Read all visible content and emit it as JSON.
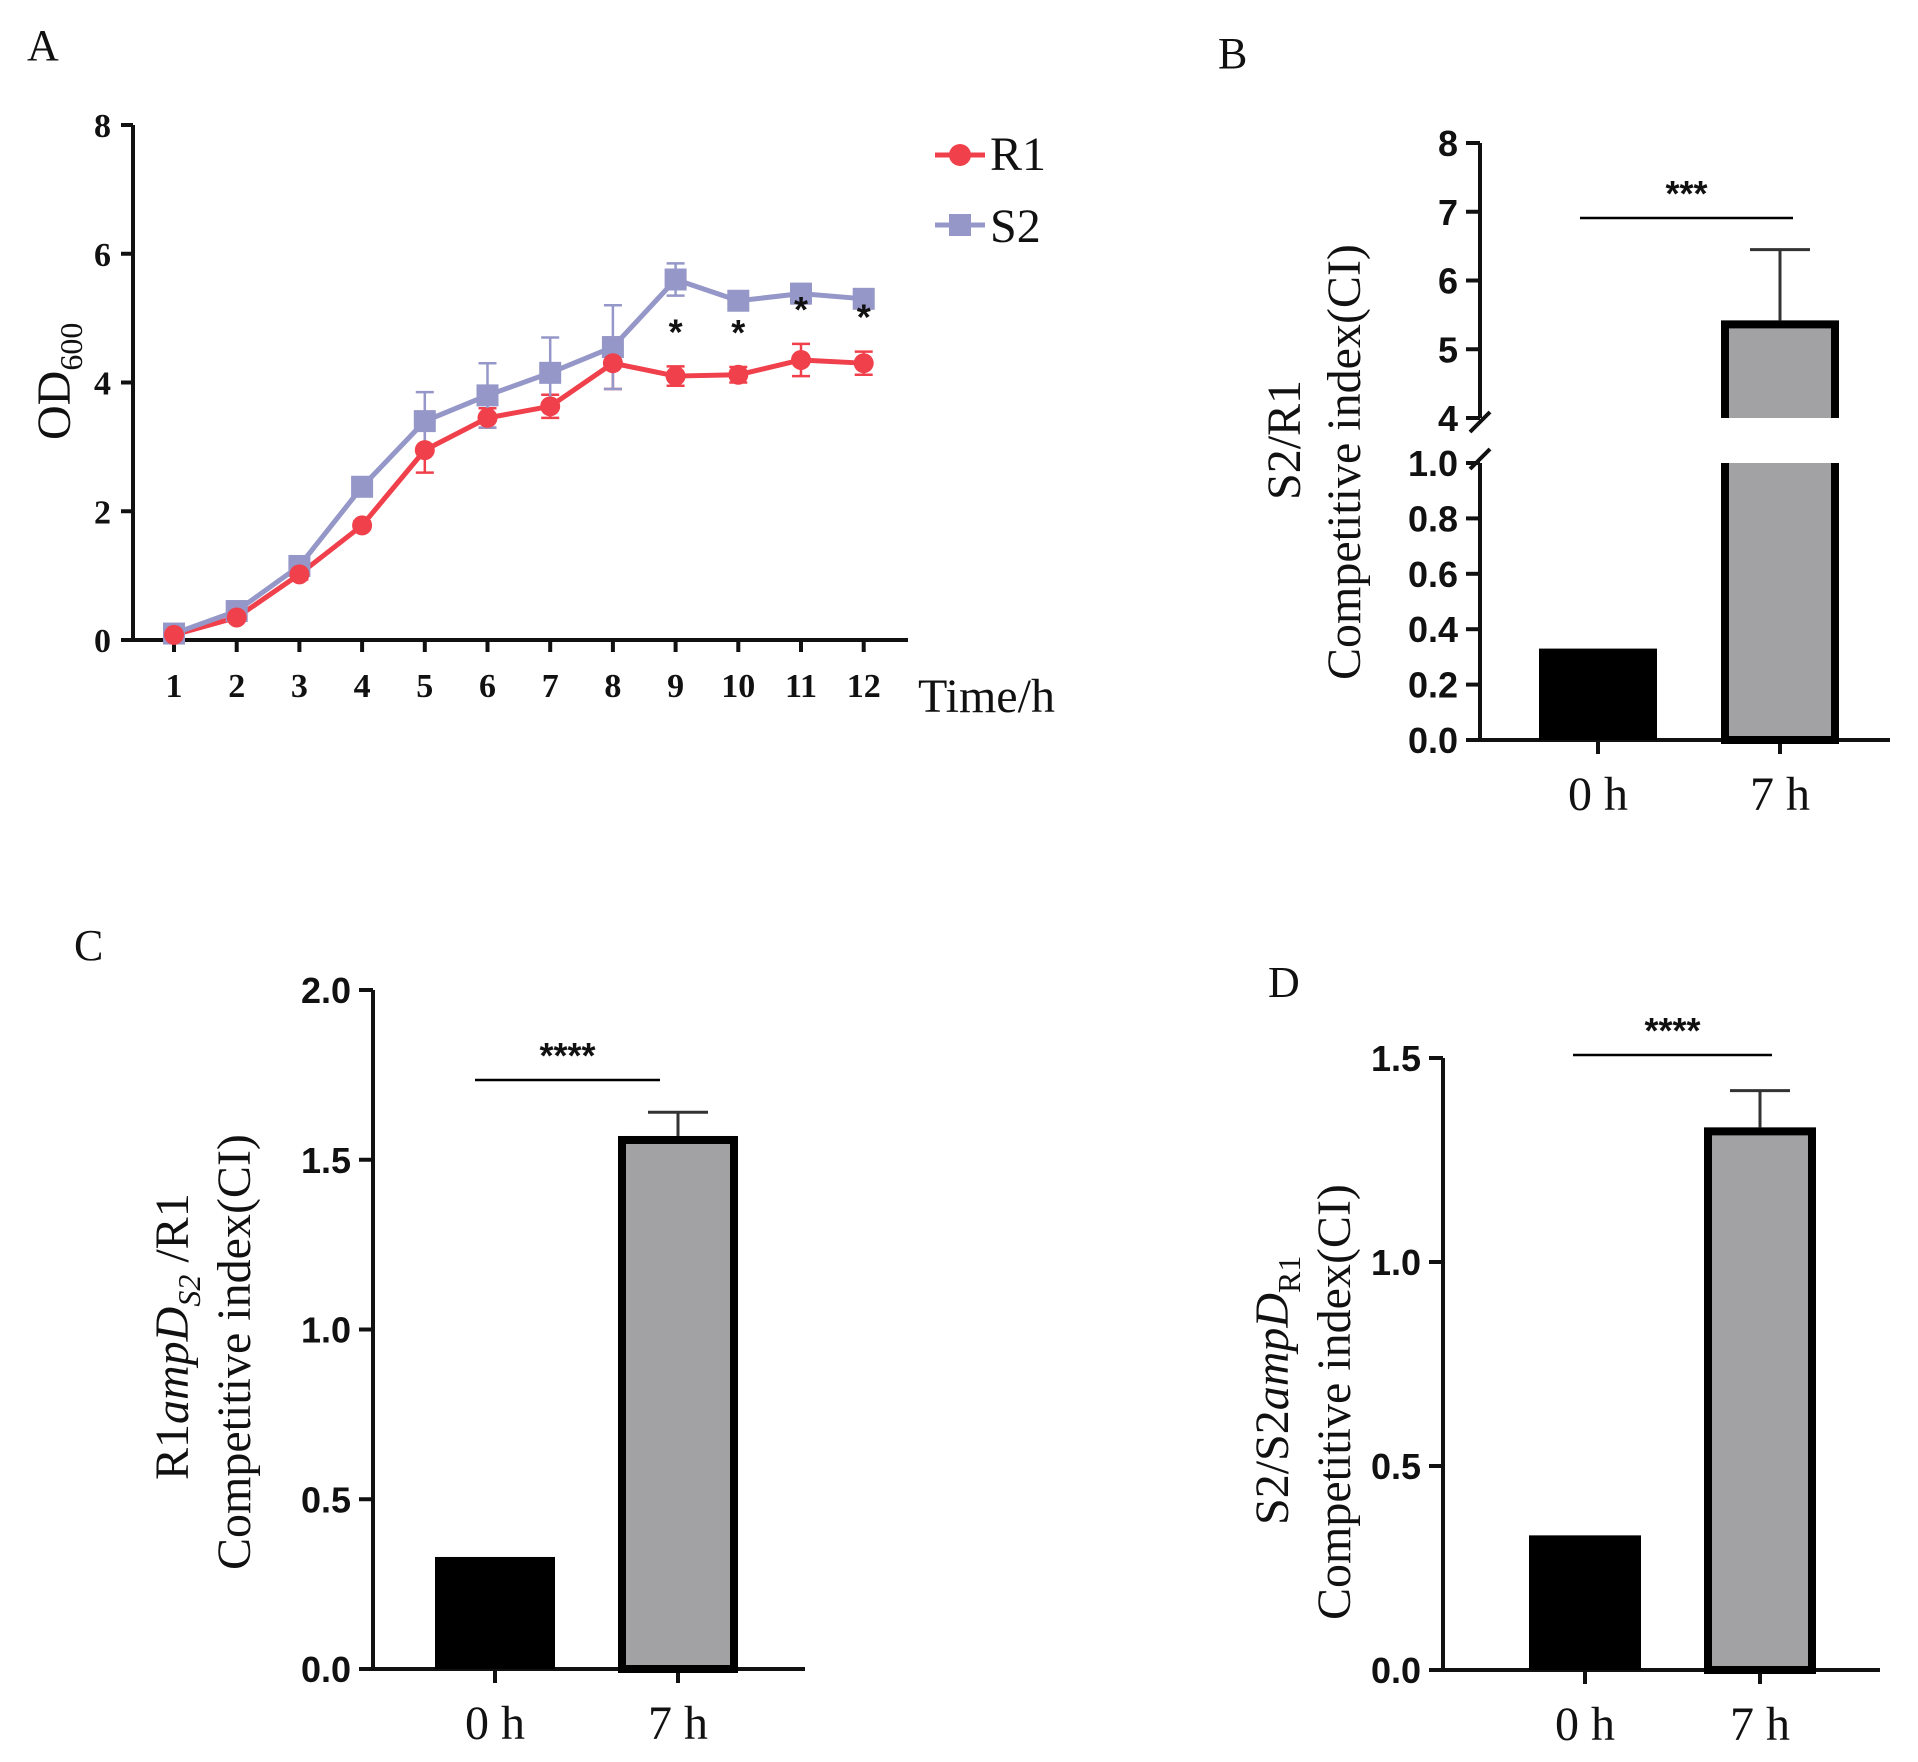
{
  "colors": {
    "r1": "#f0404b",
    "s2": "#9597c8",
    "bar_0h": "#000000",
    "bar_7h": "#a2a2a4",
    "axis": "#111111"
  },
  "chart_data": [
    {
      "panel": "A",
      "type": "line",
      "title": "",
      "xlabel": "Time/h",
      "ylabel": "OD",
      "ylabel_subscript": "600",
      "categories": [
        "1",
        "2",
        "3",
        "4",
        "5",
        "6",
        "7",
        "8",
        "9",
        "10",
        "11",
        "12"
      ],
      "ylim": [
        0,
        8
      ],
      "yticks": [
        "0",
        "2",
        "4",
        "6",
        "8"
      ],
      "legend": "top-right",
      "series": [
        {
          "name": "R1",
          "marker": "circle",
          "values": [
            0.08,
            0.35,
            1.02,
            1.78,
            2.95,
            3.45,
            3.63,
            4.3,
            4.1,
            4.12,
            4.35,
            4.3
          ],
          "errors": [
            0.03,
            0.05,
            0.08,
            0.06,
            0.35,
            0.15,
            0.18,
            0.4,
            0.15,
            0.12,
            0.25,
            0.18
          ]
        },
        {
          "name": "S2",
          "marker": "square",
          "values": [
            0.1,
            0.45,
            1.15,
            2.38,
            3.4,
            3.8,
            4.15,
            4.55,
            5.6,
            5.27,
            5.38,
            5.3
          ],
          "errors": [
            0.04,
            0.05,
            0.07,
            0.1,
            0.45,
            0.5,
            0.55,
            0.65,
            0.25,
            0.12,
            0.15,
            0.1
          ]
        }
      ],
      "annotations": [
        {
          "x": "9",
          "text": "*"
        },
        {
          "x": "10",
          "text": "*"
        },
        {
          "x": "11",
          "text": "*"
        },
        {
          "x": "12",
          "text": "*"
        }
      ]
    },
    {
      "panel": "B",
      "type": "bar",
      "ylabel_line1": "S2/R1",
      "ylabel_line2": "Competitive index(CI)",
      "categories": [
        "0 h",
        "7 h"
      ],
      "values": [
        0.33,
        5.42
      ],
      "errors": [
        0,
        1.03
      ],
      "broken_axis": {
        "lower": [
          0,
          1.0
        ],
        "upper": [
          4,
          8
        ]
      },
      "yticks_lower": [
        "0.0",
        "0.2",
        "0.4",
        "0.6",
        "0.8",
        "1.0"
      ],
      "yticks_upper": [
        "4",
        "5",
        "6",
        "7",
        "8"
      ],
      "significance": "***"
    },
    {
      "panel": "C",
      "type": "bar",
      "ylabel_line1_pre": "R1",
      "ylabel_line1_italic": "ampD",
      "ylabel_line1_sub": "S2",
      "ylabel_line1_post": " /R1",
      "ylabel_line2": "Competitive index(CI)",
      "categories": [
        "0 h",
        "7 h"
      ],
      "values": [
        0.33,
        1.57
      ],
      "errors": [
        0,
        0.07
      ],
      "ylim": [
        0,
        2.0
      ],
      "yticks": [
        "0.0",
        "0.5",
        "1.0",
        "1.5",
        "2.0"
      ],
      "significance": "****"
    },
    {
      "panel": "D",
      "type": "bar",
      "ylabel_line1_pre": "S2/S2",
      "ylabel_line1_italic": "ampD",
      "ylabel_line1_sub": "R1",
      "ylabel_line2": "Competitive index(CI)",
      "categories": [
        "0 h",
        "7 h"
      ],
      "values": [
        0.33,
        1.33
      ],
      "errors": [
        0,
        0.09
      ],
      "ylim": [
        0,
        1.5
      ],
      "yticks": [
        "0.0",
        "0.5",
        "1.0",
        "1.5"
      ],
      "significance": "****"
    }
  ]
}
